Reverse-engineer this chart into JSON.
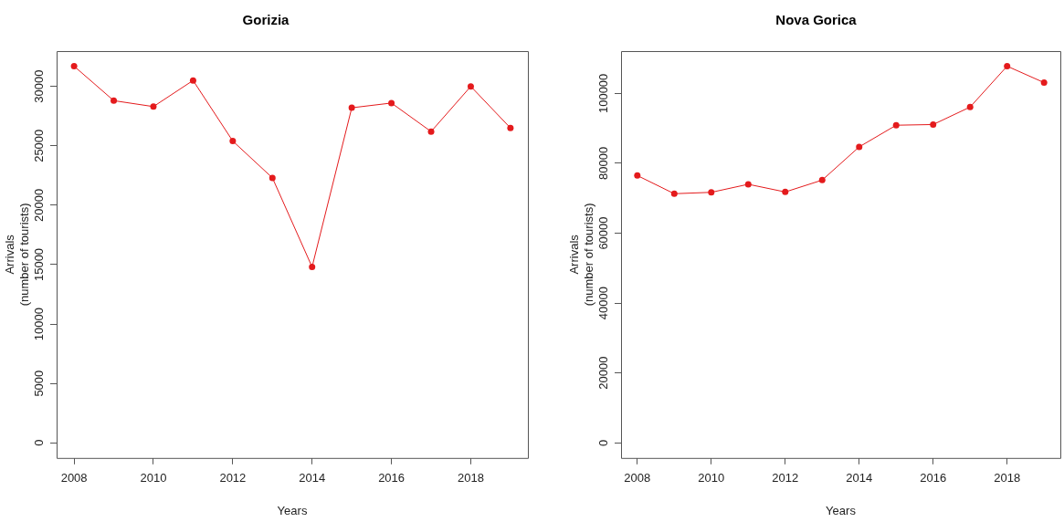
{
  "chart_data": [
    {
      "type": "line",
      "title": "Gorizia",
      "xlabel": "Years",
      "ylabel": "Arrivals\n(number of tourists)",
      "x": [
        2008,
        2009,
        2010,
        2011,
        2012,
        2013,
        2014,
        2015,
        2016,
        2017,
        2018,
        2019
      ],
      "series": [
        {
          "color": "#e41a1c",
          "values": [
            31700,
            28800,
            28300,
            30500,
            25400,
            22300,
            14800,
            28200,
            28600,
            26200,
            30000,
            26500
          ]
        }
      ],
      "xlim": [
        2007.56,
        2019.44
      ],
      "xticks": [
        2008,
        2010,
        2012,
        2014,
        2016,
        2018
      ],
      "ylim": [
        -1270,
        32970
      ],
      "yticks": [
        0,
        5000,
        10000,
        15000,
        20000,
        25000,
        30000
      ],
      "grid": false,
      "legend": false,
      "marker": "circle",
      "line_style": "solid"
    },
    {
      "type": "line",
      "title": "Nova Gorica",
      "xlabel": "Years",
      "ylabel": "Arrivals\n(number of tourists)",
      "x": [
        2008,
        2009,
        2010,
        2011,
        2012,
        2013,
        2014,
        2015,
        2016,
        2017,
        2018,
        2019
      ],
      "series": [
        {
          "color": "#e41a1c",
          "values": [
            76500,
            71300,
            71700,
            74000,
            71800,
            75200,
            84700,
            90900,
            91100,
            96100,
            107800,
            103100
          ]
        }
      ],
      "xlim": [
        2007.56,
        2019.44
      ],
      "xticks": [
        2008,
        2010,
        2012,
        2014,
        2016,
        2018
      ],
      "ylim": [
        -4310,
        112110
      ],
      "yticks": [
        0,
        20000,
        40000,
        60000,
        80000,
        100000
      ],
      "grid": false,
      "legend": false,
      "marker": "circle",
      "line_style": "solid"
    }
  ]
}
